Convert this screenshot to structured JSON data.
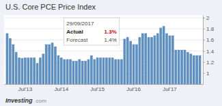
{
  "chart_data": {
    "type": "bar",
    "title": "U.S. Core PCE Price Index",
    "categories": [
      null,
      null,
      null,
      null,
      null,
      null,
      "Jul'13",
      null,
      null,
      null,
      null,
      null,
      null,
      null,
      null,
      null,
      null,
      null,
      "Jul'14",
      null,
      null,
      null,
      null,
      null,
      null,
      null,
      null,
      null,
      null,
      null,
      "Jul'15",
      null,
      null,
      null,
      null,
      null,
      null,
      null,
      null,
      null,
      null,
      null,
      "Jul'16",
      null,
      null,
      null,
      null,
      null,
      null,
      null,
      null,
      null,
      null,
      null,
      "Jul'17",
      null,
      null,
      null,
      null,
      null,
      null,
      null,
      null,
      null,
      null
    ],
    "values": [
      1.72,
      1.63,
      1.52,
      1.38,
      1.28,
      1.27,
      1.28,
      1.28,
      1.28,
      1.28,
      1.18,
      1.28,
      1.35,
      1.52,
      1.52,
      1.55,
      1.48,
      1.32,
      1.28,
      1.25,
      1.25,
      1.25,
      1.22,
      1.22,
      1.25,
      1.22,
      1.22,
      1.25,
      1.32,
      1.25,
      1.28,
      1.28,
      1.28,
      1.28,
      1.28,
      1.28,
      1.25,
      1.25,
      1.25,
      1.62,
      1.65,
      1.58,
      1.52,
      1.52,
      1.65,
      1.72,
      1.72,
      1.65,
      1.65,
      1.68,
      1.72,
      1.82,
      1.85,
      1.72,
      1.68,
      1.68,
      1.42,
      1.42,
      1.42,
      1.42,
      1.38,
      1.35,
      1.32,
      1.32,
      1.32
    ],
    "color": "#6090c0",
    "ylim": [
      0.8,
      2.05
    ],
    "yticks": [
      1,
      1.2,
      1.4,
      1.6,
      1.8,
      2
    ],
    "grid": true,
    "annotations": [
      "29/09/2017",
      "Actual",
      "1.3%",
      "Forecast",
      "1.4%",
      "Investing",
      ".com"
    ]
  }
}
